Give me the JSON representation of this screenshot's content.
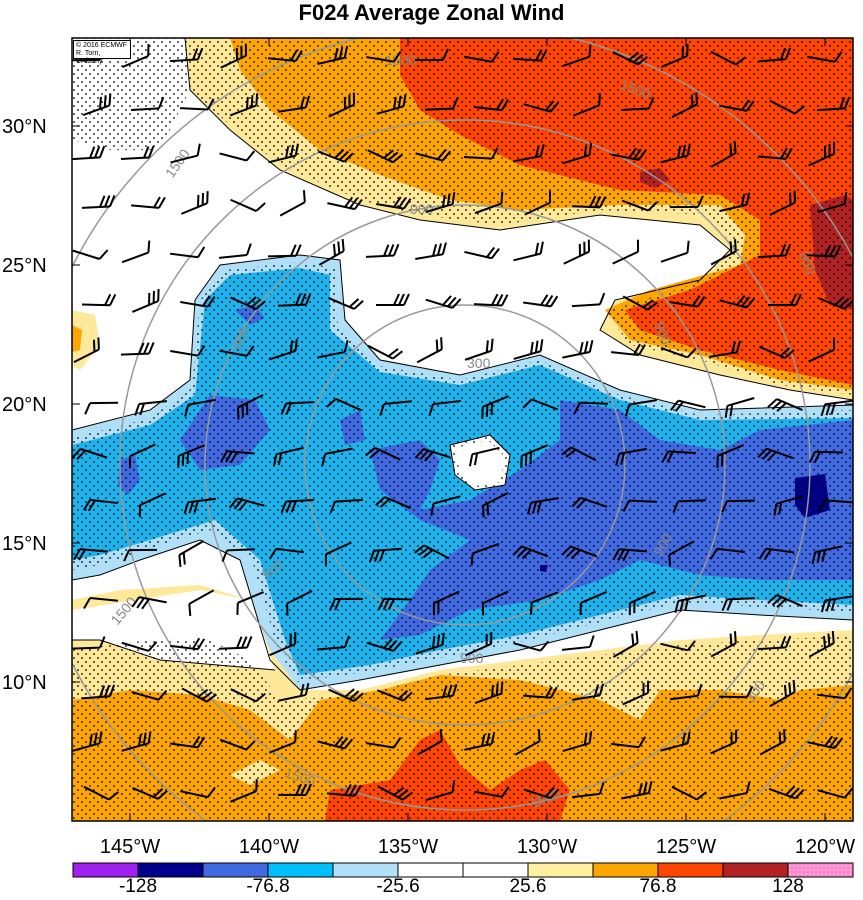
{
  "title": "F024 Average Zonal Wind",
  "credit": {
    "line1": "© 2016 ECMWF",
    "line2": "R. Torn, UAlbany"
  },
  "latitude_labels": [
    "30°N",
    "25°N",
    "20°N",
    "15°N",
    "10°N"
  ],
  "longitude_labels": [
    "145°W",
    "140°W",
    "135°W",
    "130°W",
    "125°W",
    "120°W"
  ],
  "contour_labels": [
    "300",
    "900",
    "1500",
    "900",
    "1500",
    "900",
    "1500",
    "900",
    "1500",
    "900",
    "1500",
    "1500",
    "900",
    "300",
    "900"
  ],
  "colorbar": {
    "labels": [
      "-128",
      "-76.8",
      "-25.6",
      "25.6",
      "76.8",
      "128"
    ],
    "colors": [
      "#a020f0",
      "#00008b",
      "#4169e1",
      "#00bfff",
      "#b0e0f8",
      "#ffffff",
      "#ffffff",
      "#fff0a0",
      "#ffa500",
      "#ff4500",
      "#b22222",
      "#ff88cc"
    ]
  },
  "palette": {
    "dark_red": "#b22222",
    "red_orange": "#ff4500",
    "orange": "#ffa500",
    "light_yellow": "#fee89a",
    "light_blue": "#b0e0f8",
    "sky_blue": "#1cb4ee",
    "royal_blue": "#4169e1",
    "navy": "#00008b",
    "contour_gray": "#999999"
  }
}
